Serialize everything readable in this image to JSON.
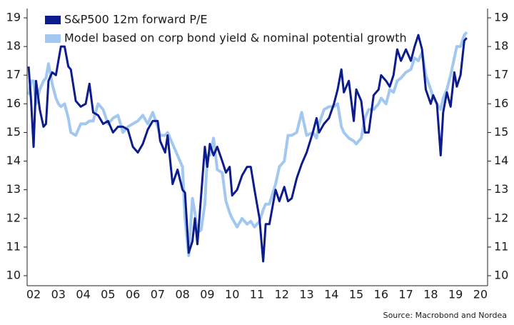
{
  "chart_data": {
    "type": "line",
    "x": [
      2002.3,
      2002.4,
      2002.5,
      2002.6,
      2002.75,
      2002.9,
      2003.0,
      2003.1,
      2003.25,
      2003.4,
      2003.5,
      2003.6,
      2003.75,
      2003.9,
      2004.0,
      2004.2,
      2004.4,
      2004.6,
      2004.75,
      2004.9,
      2005.1,
      2005.3,
      2005.5,
      2005.7,
      2005.9,
      2006.1,
      2006.3,
      2006.5,
      2006.7,
      2006.9,
      2007.1,
      2007.3,
      2007.5,
      2007.6,
      2007.8,
      2007.9,
      2008.1,
      2008.3,
      2008.5,
      2008.6,
      2008.75,
      2008.9,
      2009.0,
      2009.1,
      2009.25,
      2009.4,
      2009.5,
      2009.6,
      2009.75,
      2009.9,
      2010.1,
      2010.25,
      2010.4,
      2010.5,
      2010.7,
      2010.9,
      2011.1,
      2011.25,
      2011.4,
      2011.6,
      2011.75,
      2011.85,
      2012.0,
      2012.25,
      2012.4,
      2012.6,
      2012.75,
      2012.9,
      2013.1,
      2013.3,
      2013.5,
      2013.75,
      2013.9,
      2014.0,
      2014.2,
      2014.4,
      2014.6,
      2014.75,
      2014.9,
      2015.0,
      2015.2,
      2015.4,
      2015.5,
      2015.7,
      2015.85,
      2016.0,
      2016.2,
      2016.4,
      2016.5,
      2016.7,
      2016.85,
      2017.0,
      2017.15,
      2017.3,
      2017.5,
      2017.7,
      2017.85,
      2018.0,
      2018.15,
      2018.3,
      2018.5,
      2018.6,
      2018.75,
      2018.9,
      2019.0,
      2019.15,
      2019.3,
      2019.45,
      2019.55,
      2019.7,
      2019.85,
      2019.95
    ],
    "series": [
      {
        "name": "Model based on corp bond yield & nominal potential growth",
        "color": "#a3c8f0",
        "values": [
          16.3,
          16.8,
          16.8,
          16.0,
          16.5,
          16.8,
          16.9,
          17.4,
          16.7,
          16.2,
          16.0,
          15.9,
          16.0,
          15.5,
          15.0,
          14.9,
          15.3,
          15.3,
          15.4,
          15.4,
          16.0,
          15.8,
          15.3,
          15.5,
          15.6,
          15.0,
          15.2,
          15.3,
          15.4,
          15.6,
          15.3,
          15.7,
          15.2,
          14.9,
          14.9,
          15.0,
          14.6,
          14.2,
          13.8,
          12.0,
          10.7,
          12.7,
          12.2,
          11.5,
          11.6,
          12.5,
          14.2,
          14.2,
          14.8,
          13.7,
          13.6,
          12.6,
          12.2,
          12.0,
          11.7,
          12.0,
          11.8,
          11.9,
          11.7,
          11.9,
          12.3,
          12.5,
          12.5,
          13.2,
          13.8,
          14.0,
          14.9,
          14.9,
          15.0,
          15.7,
          14.9,
          15.0,
          14.8,
          15.3,
          15.8,
          15.9,
          15.9,
          16.0,
          15.2,
          15.0,
          14.8,
          14.7,
          14.6,
          14.8,
          15.5,
          15.8,
          15.8,
          16.0,
          16.2,
          16.0,
          16.5,
          16.4,
          16.8,
          16.9,
          17.1,
          17.2,
          17.6,
          17.5,
          17.8,
          17.0,
          16.5,
          16.2,
          16.0,
          15.8,
          16.2,
          16.5,
          17.0,
          17.6,
          18.0,
          18.0,
          18.4,
          18.5
        ]
      },
      {
        "name": "S&P500 12m forward P/E",
        "color": "#0c1c8c",
        "values": [
          17.3,
          16.1,
          14.5,
          16.8,
          15.8,
          15.2,
          15.3,
          16.8,
          17.1,
          17.0,
          17.5,
          18.0,
          18.0,
          17.3,
          17.2,
          16.1,
          15.9,
          16.0,
          16.7,
          15.7,
          15.6,
          15.3,
          15.4,
          15.0,
          15.2,
          15.2,
          15.1,
          14.5,
          14.3,
          14.6,
          15.1,
          15.4,
          15.4,
          14.7,
          14.3,
          14.9,
          13.2,
          13.7,
          13.0,
          12.9,
          10.8,
          11.2,
          12.0,
          11.1,
          12.8,
          14.5,
          13.8,
          14.6,
          14.2,
          14.5,
          14.0,
          13.6,
          13.8,
          12.8,
          13.0,
          13.5,
          13.8,
          13.8,
          13.0,
          12.0,
          10.5,
          11.8,
          11.8,
          13.0,
          12.6,
          13.1,
          12.6,
          12.7,
          13.4,
          13.9,
          14.3,
          15.0,
          15.5,
          15.0,
          15.3,
          15.5,
          16.0,
          16.5,
          17.2,
          16.4,
          16.8,
          15.4,
          16.5,
          16.1,
          15.0,
          15.0,
          16.3,
          16.5,
          17.0,
          16.8,
          16.6,
          17.0,
          17.9,
          17.5,
          17.9,
          17.5,
          18.0,
          18.4,
          17.9,
          16.5,
          16.0,
          16.3,
          16.0,
          14.2,
          15.7,
          16.4,
          15.9,
          17.1,
          16.6,
          17.0,
          18.2,
          18.3
        ]
      }
    ],
    "legend_order": [
      1,
      0
    ],
    "xlim": [
      2002.24,
      2020.79
    ],
    "xticks": [
      {
        "value": 2002.5,
        "label": "02"
      },
      {
        "value": 2003.5,
        "label": "03"
      },
      {
        "value": 2004.5,
        "label": "04"
      },
      {
        "value": 2005.5,
        "label": "05"
      },
      {
        "value": 2006.5,
        "label": "06"
      },
      {
        "value": 2007.5,
        "label": "07"
      },
      {
        "value": 2008.5,
        "label": "08"
      },
      {
        "value": 2009.5,
        "label": "09"
      },
      {
        "value": 2010.5,
        "label": "10"
      },
      {
        "value": 2011.5,
        "label": "11"
      },
      {
        "value": 2012.5,
        "label": "12"
      },
      {
        "value": 2013.5,
        "label": "13"
      },
      {
        "value": 2014.5,
        "label": "14"
      },
      {
        "value": 2015.5,
        "label": "15"
      },
      {
        "value": 2016.5,
        "label": "16"
      },
      {
        "value": 2017.5,
        "label": "17"
      },
      {
        "value": 2018.5,
        "label": "18"
      },
      {
        "value": 2019.5,
        "label": "19"
      },
      {
        "value": 2020.5,
        "label": "20"
      }
    ],
    "ylim": [
      10,
      19
    ],
    "yticks": [
      10,
      11,
      12,
      13,
      14,
      15,
      16,
      17,
      18,
      19
    ],
    "y2lim": [
      10,
      19
    ],
    "y2ticks": [
      10,
      11,
      12,
      13,
      14,
      15,
      16,
      17,
      18,
      19
    ],
    "source": "Source: Macrobond and Nordea"
  }
}
